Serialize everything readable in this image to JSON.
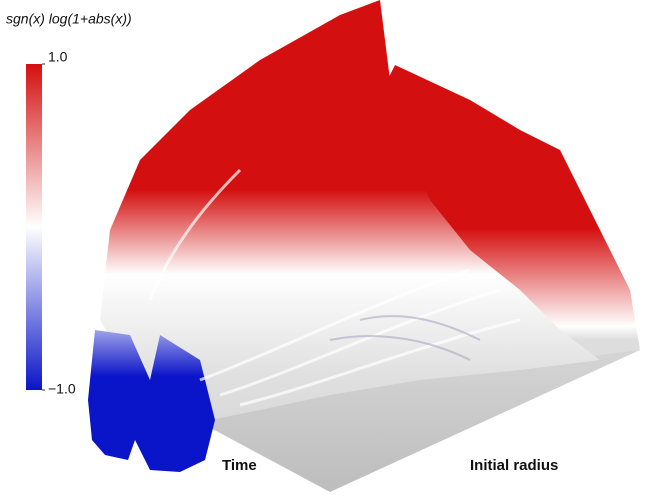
{
  "chart_data": {
    "type": "surface",
    "title": "sgn(x) log(1+abs(x))",
    "x_label": "Time",
    "y_label": "Initial radius",
    "colorbar": {
      "lim": [
        -1,
        1
      ],
      "ticks": [
        {
          "value": 1,
          "label": "1.0"
        },
        {
          "value": -1,
          "label": "−1.0"
        }
      ],
      "colors": [
        "#0a14c8",
        "#ffffff",
        "#d40f0f"
      ]
    }
  }
}
